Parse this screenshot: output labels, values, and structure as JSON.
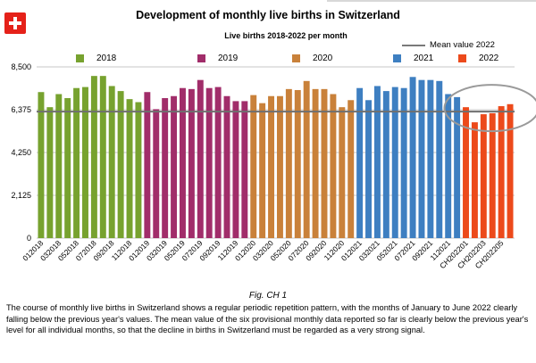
{
  "title": "Development of monthly live births in Switzerland",
  "subtitle": "Live births 2018-2022 per month",
  "caption": "Fig. CH 1",
  "description": "The course of monthly live births in Switzerland shows a regular periodic repetition pattern, with the months of January to June 2022 clearly falling below the previous year's values. The mean value of the six provisional monthly data reported so far is clearly below the previous year's level for all individual months, so that the decline in births in Switzerland must be regarded as a very strong signal.",
  "legend": {
    "mean_label": "Mean value 2022",
    "years": [
      {
        "label": "2018",
        "color": "#77a22f"
      },
      {
        "label": "2019",
        "color": "#a12d6a"
      },
      {
        "label": "2020",
        "color": "#c9813a"
      },
      {
        "label": "2021",
        "color": "#3e7fc1"
      },
      {
        "label": "2022",
        "color": "#ec4a1b"
      }
    ]
  },
  "icons": {
    "flag": "swiss-flag-icon"
  },
  "chart_data": {
    "type": "bar",
    "ylim": [
      0,
      8500
    ],
    "yticks": [
      "0",
      "2,125",
      "4,250",
      "6,375",
      "8,500"
    ],
    "mean_value": 6280,
    "grid": "horizontal",
    "highlight": "ellipse around mean line at 2022 bars",
    "series": [
      {
        "name": "2018",
        "color": "#77a22f",
        "categories": [
          "012018",
          "022018",
          "032018",
          "042018",
          "052018",
          "062018",
          "072018",
          "082018",
          "092018",
          "102018",
          "112018",
          "122018"
        ],
        "values": [
          7250,
          6500,
          7150,
          6950,
          7450,
          7500,
          8050,
          8050,
          7550,
          7300,
          6900,
          6750
        ]
      },
      {
        "name": "2019",
        "color": "#a12d6a",
        "categories": [
          "012019",
          "022019",
          "032019",
          "042019",
          "052019",
          "062019",
          "072019",
          "082019",
          "092019",
          "102019",
          "112019",
          "122019"
        ],
        "values": [
          7250,
          6400,
          6950,
          7050,
          7450,
          7400,
          7850,
          7450,
          7500,
          7050,
          6800,
          6800
        ]
      },
      {
        "name": "2020",
        "color": "#c9813a",
        "categories": [
          "012020",
          "022020",
          "032020",
          "042020",
          "052020",
          "062020",
          "072020",
          "082020",
          "092020",
          "102020",
          "112020",
          "122020"
        ],
        "values": [
          7100,
          6700,
          7050,
          7050,
          7400,
          7350,
          7800,
          7400,
          7400,
          7150,
          6500,
          6850
        ]
      },
      {
        "name": "2021",
        "color": "#3e7fc1",
        "categories": [
          "012021",
          "022021",
          "032021",
          "042021",
          "052021",
          "062021",
          "072021",
          "082021",
          "092021",
          "102021",
          "112021",
          "122021"
        ],
        "values": [
          7450,
          6850,
          7550,
          7300,
          7500,
          7450,
          8000,
          7850,
          7850,
          7800,
          7150,
          7000
        ]
      },
      {
        "name": "2022",
        "color": "#ec4a1b",
        "categories": [
          "CH202201",
          "CH202202",
          "CH202203",
          "CH202204",
          "CH202205",
          "CH202206"
        ],
        "values": [
          6500,
          5750,
          6150,
          6200,
          6550,
          6650
        ]
      }
    ],
    "x_tick_labels": [
      "012018",
      "032018",
      "052018",
      "072018",
      "092018",
      "112018",
      "012019",
      "032019",
      "052019",
      "072019",
      "092019",
      "112019",
      "012020",
      "032020",
      "052020",
      "072020",
      "092020",
      "112020",
      "012021",
      "032021",
      "052021",
      "072021",
      "092021",
      "112021",
      "CH202201",
      "CH202203",
      "CH202205"
    ]
  }
}
